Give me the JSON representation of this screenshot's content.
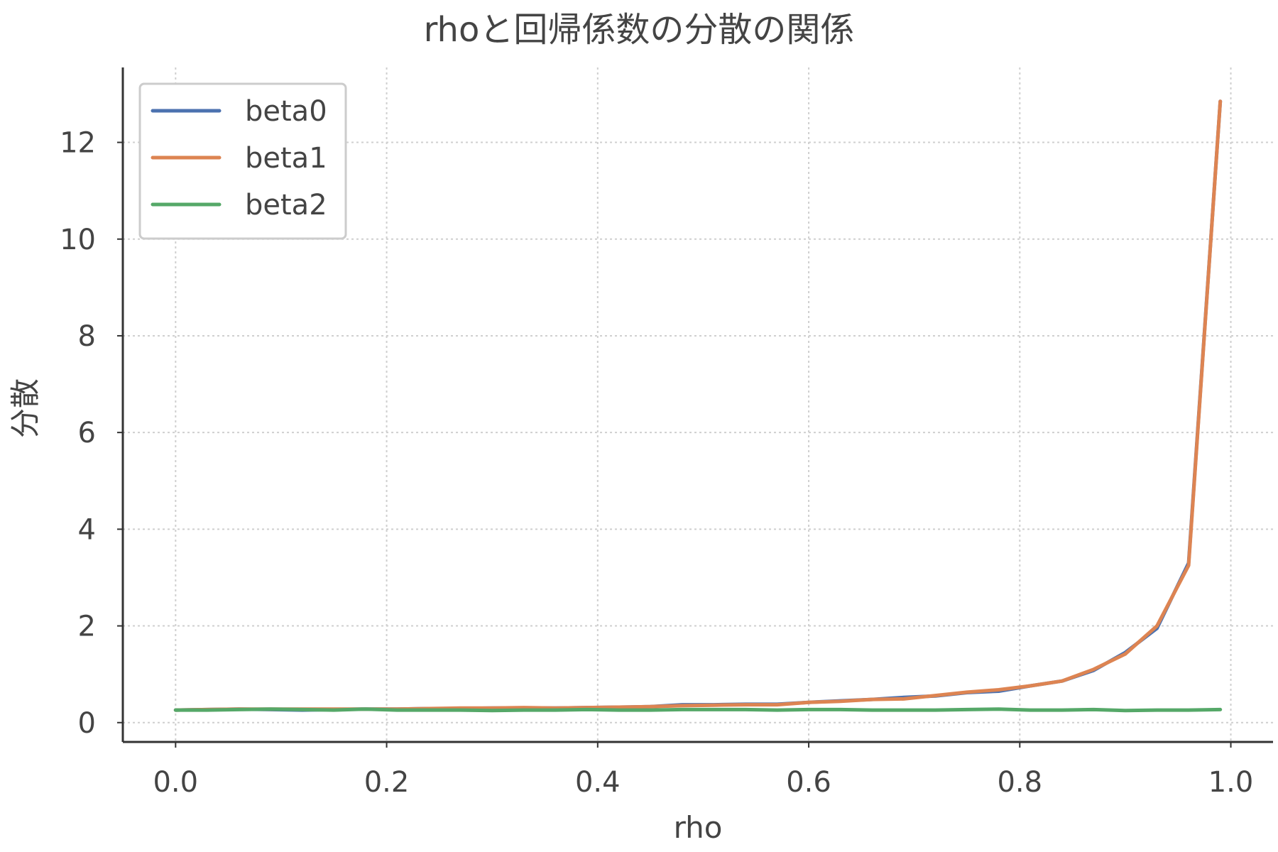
{
  "chart_data": {
    "type": "line",
    "title": "rhoと回帰係数の分散の関係",
    "xlabel": "rho",
    "ylabel": "分散",
    "xlim": [
      -0.05,
      1.04
    ],
    "ylim": [
      -0.4,
      13.55
    ],
    "xticks": [
      0.0,
      0.2,
      0.4,
      0.6,
      0.8,
      1.0
    ],
    "xtick_labels": [
      "0.0",
      "0.2",
      "0.4",
      "0.6",
      "0.8",
      "1.0"
    ],
    "yticks": [
      0,
      2,
      4,
      6,
      8,
      10,
      12
    ],
    "ytick_labels": [
      "0",
      "2",
      "4",
      "6",
      "8",
      "10",
      "12"
    ],
    "grid": true,
    "legend_position": "top-left",
    "x": [
      0.0,
      0.03,
      0.06,
      0.09,
      0.12,
      0.15,
      0.18,
      0.21,
      0.24,
      0.27,
      0.3,
      0.33,
      0.36,
      0.39,
      0.42,
      0.45,
      0.48,
      0.51,
      0.54,
      0.57,
      0.6,
      0.63,
      0.66,
      0.69,
      0.72,
      0.75,
      0.78,
      0.81,
      0.84,
      0.87,
      0.9,
      0.93,
      0.96,
      0.99
    ],
    "series": [
      {
        "name": "beta0",
        "color": "#4C72B0",
        "values": [
          0.26,
          0.27,
          0.28,
          0.27,
          0.26,
          0.27,
          0.28,
          0.28,
          0.29,
          0.29,
          0.3,
          0.3,
          0.3,
          0.31,
          0.32,
          0.33,
          0.37,
          0.37,
          0.38,
          0.38,
          0.42,
          0.45,
          0.48,
          0.52,
          0.55,
          0.62,
          0.65,
          0.76,
          0.86,
          1.08,
          1.45,
          1.95,
          3.3,
          12.85
        ]
      },
      {
        "name": "beta1",
        "color": "#DD8452",
        "values": [
          0.26,
          0.27,
          0.28,
          0.28,
          0.28,
          0.28,
          0.28,
          0.28,
          0.29,
          0.3,
          0.3,
          0.31,
          0.3,
          0.31,
          0.32,
          0.33,
          0.35,
          0.36,
          0.37,
          0.37,
          0.42,
          0.44,
          0.48,
          0.49,
          0.56,
          0.63,
          0.68,
          0.76,
          0.86,
          1.1,
          1.42,
          2.0,
          3.25,
          12.85
        ]
      },
      {
        "name": "beta2",
        "color": "#55A868",
        "values": [
          0.26,
          0.26,
          0.27,
          0.28,
          0.27,
          0.26,
          0.28,
          0.26,
          0.26,
          0.26,
          0.25,
          0.26,
          0.26,
          0.27,
          0.26,
          0.26,
          0.27,
          0.27,
          0.27,
          0.26,
          0.27,
          0.27,
          0.26,
          0.26,
          0.26,
          0.27,
          0.28,
          0.26,
          0.26,
          0.27,
          0.25,
          0.26,
          0.26,
          0.27
        ]
      }
    ]
  }
}
